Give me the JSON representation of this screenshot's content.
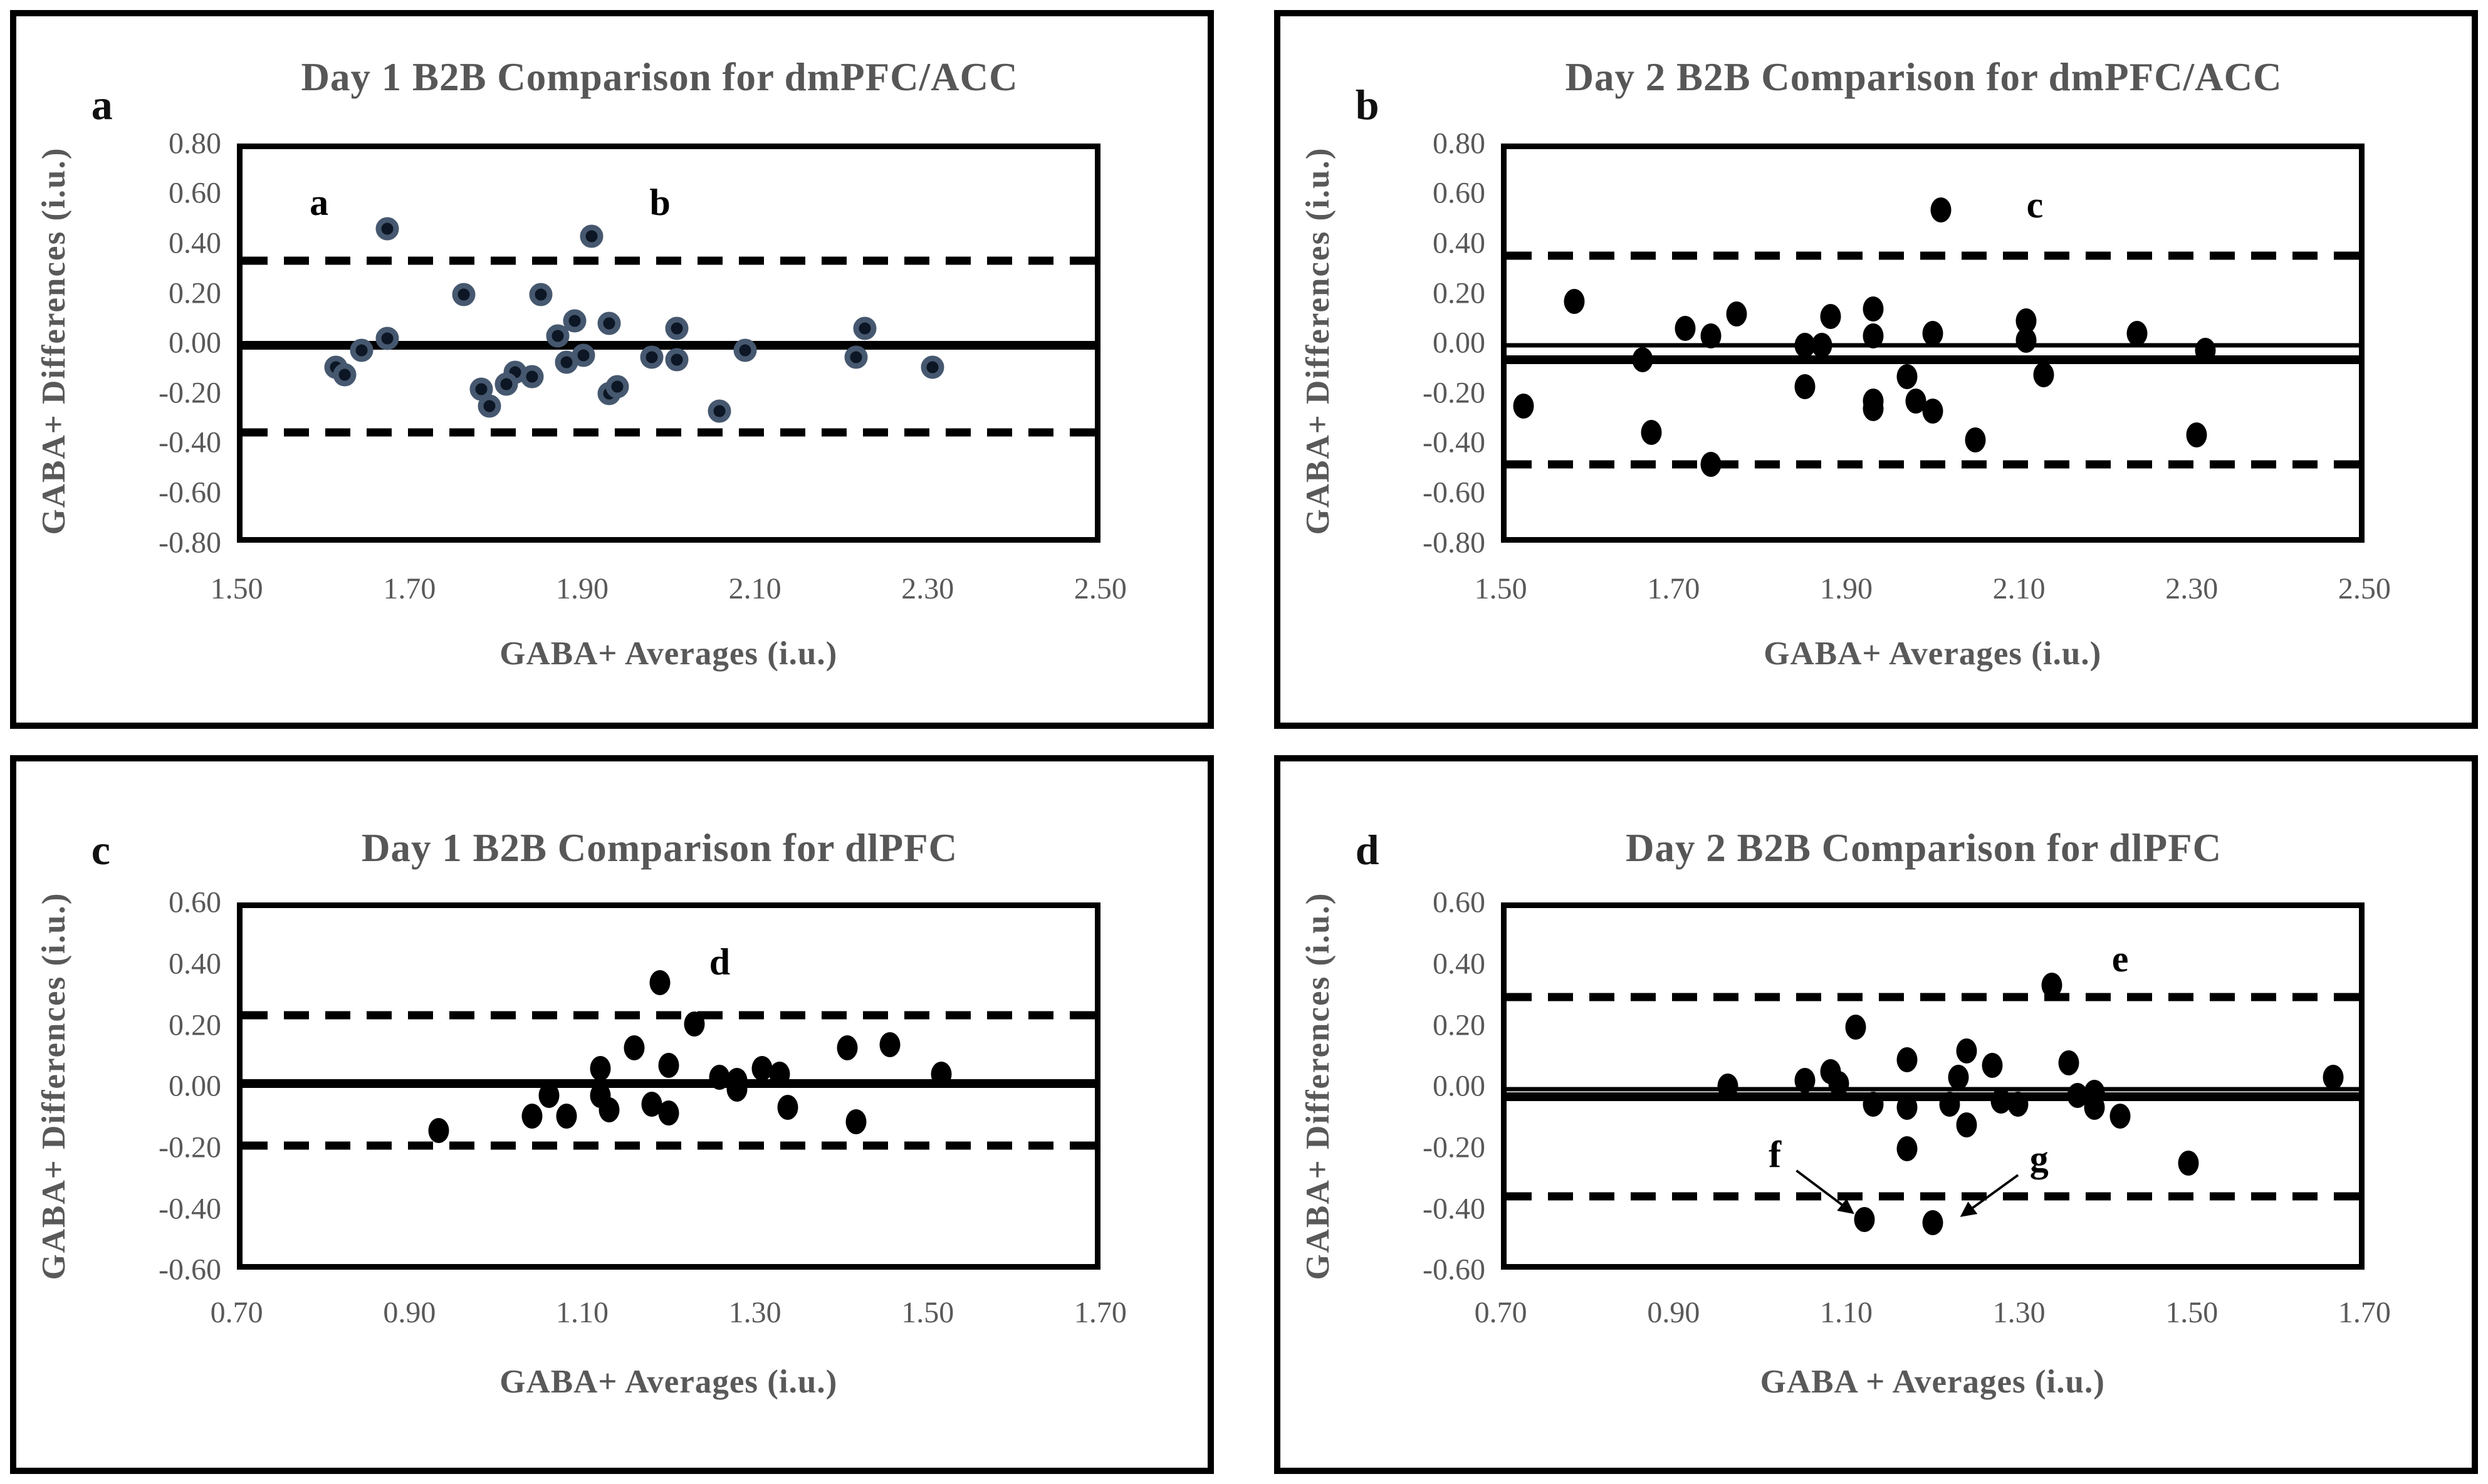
{
  "figure": {
    "background_color": "#ffffff",
    "frame_color": "#000000",
    "axis_text_color": "#595959",
    "annotation_color": "#000000",
    "day1_dmpfc_point_color": "#44546A",
    "black_point_color": "#000000"
  },
  "chart_data": [
    {
      "type": "scatter",
      "panel_letter": "a",
      "title": "Day 1 B2B Comparison for dmPFC/ACC",
      "xlabel": "GABA+ Averages (i.u.)",
      "ylabel": "GABA+ Differences (i.u.)",
      "x_range": [
        1.5,
        2.5
      ],
      "y_range": [
        -0.8,
        0.8
      ],
      "x_ticks": [
        "1.50",
        "1.70",
        "1.90",
        "2.10",
        "2.30",
        "2.50"
      ],
      "y_ticks": [
        "0.80",
        "0.60",
        "0.40",
        "0.20",
        "0.00",
        "-0.20",
        "-0.40",
        "-0.60",
        "-0.80"
      ],
      "grid": false,
      "point_style": "navy-ring",
      "lines": [
        {
          "name": "mean-line",
          "style": "mean",
          "value": -0.01
        },
        {
          "name": "upper-loa-line",
          "style": "dashed",
          "value": 0.34
        },
        {
          "name": "lower-loa-line",
          "style": "dashed",
          "value": -0.37
        }
      ],
      "annotations": [
        {
          "label": "a",
          "x": 1.59,
          "y": 0.58
        },
        {
          "label": "b",
          "x": 1.99,
          "y": 0.58
        }
      ],
      "arrows": [],
      "points": [
        [
          1.67,
          0.47
        ],
        [
          1.91,
          0.44
        ],
        [
          1.76,
          0.2
        ],
        [
          1.85,
          0.2
        ],
        [
          1.89,
          0.09
        ],
        [
          1.93,
          0.08
        ],
        [
          2.01,
          0.06
        ],
        [
          2.23,
          0.06
        ],
        [
          1.87,
          0.03
        ],
        [
          1.67,
          0.02
        ],
        [
          1.64,
          -0.03
        ],
        [
          2.09,
          -0.03
        ],
        [
          1.9,
          -0.05
        ],
        [
          1.88,
          -0.08
        ],
        [
          1.98,
          -0.06
        ],
        [
          2.01,
          -0.07
        ],
        [
          2.22,
          -0.06
        ],
        [
          1.61,
          -0.1
        ],
        [
          2.31,
          -0.1
        ],
        [
          1.62,
          -0.13
        ],
        [
          1.82,
          -0.12
        ],
        [
          1.84,
          -0.14
        ],
        [
          1.81,
          -0.17
        ],
        [
          1.78,
          -0.19
        ],
        [
          1.93,
          -0.21
        ],
        [
          1.94,
          -0.18
        ],
        [
          1.79,
          -0.26
        ],
        [
          2.06,
          -0.28
        ]
      ]
    },
    {
      "type": "scatter",
      "panel_letter": "b",
      "title": "Day 2 B2B Comparison for dmPFC/ACC",
      "xlabel": "GABA+ Averages (i.u.)",
      "ylabel": "GABA+ Differences (i.u.)",
      "x_range": [
        1.5,
        2.5
      ],
      "y_range": [
        -0.8,
        0.8
      ],
      "x_ticks": [
        "1.50",
        "1.70",
        "1.90",
        "2.10",
        "2.30",
        "2.50"
      ],
      "y_ticks": [
        "0.80",
        "0.60",
        "0.40",
        "0.20",
        "0.00",
        "-0.20",
        "-0.40",
        "-0.60",
        "-0.80"
      ],
      "grid": false,
      "point_style": "solid-black",
      "lines": [
        {
          "name": "zero-line",
          "style": "thin",
          "value": -0.01
        },
        {
          "name": "mean-line",
          "style": "mean",
          "value": -0.07
        },
        {
          "name": "upper-loa-line",
          "style": "dashed",
          "value": 0.36
        },
        {
          "name": "lower-loa-line",
          "style": "dashed",
          "value": -0.5
        }
      ],
      "annotations": [
        {
          "label": "c",
          "x": 2.12,
          "y": 0.57
        }
      ],
      "arrows": [],
      "points": [
        [
          2.01,
          0.55
        ],
        [
          1.58,
          0.17
        ],
        [
          1.93,
          0.14
        ],
        [
          1.77,
          0.12
        ],
        [
          1.88,
          0.11
        ],
        [
          2.11,
          0.09
        ],
        [
          1.71,
          0.06
        ],
        [
          2.0,
          0.04
        ],
        [
          2.24,
          0.04
        ],
        [
          1.93,
          0.03
        ],
        [
          1.74,
          0.03
        ],
        [
          2.11,
          0.01
        ],
        [
          1.85,
          -0.01
        ],
        [
          1.87,
          -0.01
        ],
        [
          2.32,
          -0.03
        ],
        [
          1.66,
          -0.07
        ],
        [
          1.97,
          -0.14
        ],
        [
          2.13,
          -0.13
        ],
        [
          1.85,
          -0.18
        ],
        [
          1.98,
          -0.24
        ],
        [
          1.93,
          -0.24
        ],
        [
          1.93,
          -0.27
        ],
        [
          2.0,
          -0.28
        ],
        [
          1.52,
          -0.26
        ],
        [
          1.67,
          -0.37
        ],
        [
          2.05,
          -0.4
        ],
        [
          2.31,
          -0.38
        ],
        [
          1.74,
          -0.5
        ]
      ]
    },
    {
      "type": "scatter",
      "panel_letter": "c",
      "title": "Day 1 B2B Comparison for dlPFC",
      "xlabel": "GABA+ Averages (i.u.)",
      "ylabel": "GABA+ Differences (i.u.)",
      "x_range": [
        0.7,
        1.7
      ],
      "y_range": [
        -0.6,
        0.6
      ],
      "x_ticks": [
        "0.70",
        "0.90",
        "1.10",
        "1.30",
        "1.50",
        "1.70"
      ],
      "y_ticks": [
        "0.60",
        "0.40",
        "0.20",
        "0.00",
        "-0.20",
        "-0.40",
        "-0.60"
      ],
      "grid": false,
      "point_style": "solid-black",
      "lines": [
        {
          "name": "mean-line",
          "style": "mean",
          "value": 0.01
        },
        {
          "name": "upper-loa-line",
          "style": "dashed",
          "value": 0.24
        },
        {
          "name": "lower-loa-line",
          "style": "dashed",
          "value": -0.2
        }
      ],
      "annotations": [
        {
          "label": "d",
          "x": 1.26,
          "y": 0.42
        }
      ],
      "arrows": [],
      "points": [
        [
          1.19,
          0.35
        ],
        [
          1.23,
          0.21
        ],
        [
          1.16,
          0.13
        ],
        [
          1.41,
          0.13
        ],
        [
          1.46,
          0.14
        ],
        [
          1.2,
          0.07
        ],
        [
          1.12,
          0.06
        ],
        [
          1.31,
          0.06
        ],
        [
          1.33,
          0.04
        ],
        [
          1.26,
          0.03
        ],
        [
          1.28,
          0.02
        ],
        [
          1.52,
          0.04
        ],
        [
          1.28,
          -0.01
        ],
        [
          1.06,
          -0.03
        ],
        [
          1.12,
          -0.03
        ],
        [
          1.18,
          -0.06
        ],
        [
          1.34,
          -0.07
        ],
        [
          1.13,
          -0.08
        ],
        [
          1.2,
          -0.09
        ],
        [
          1.04,
          -0.1
        ],
        [
          1.08,
          -0.1
        ],
        [
          1.42,
          -0.12
        ],
        [
          0.93,
          -0.15
        ]
      ]
    },
    {
      "type": "scatter",
      "panel_letter": "d",
      "title": "Day 2 B2B Comparison for dlPFC",
      "xlabel": "GABA + Averages (i.u.)",
      "ylabel": "GABA+ Differences (i.u.)",
      "x_range": [
        0.7,
        1.7
      ],
      "y_range": [
        -0.6,
        0.6
      ],
      "x_ticks": [
        "0.70",
        "0.90",
        "1.10",
        "1.30",
        "1.50",
        "1.70"
      ],
      "y_ticks": [
        "0.60",
        "0.40",
        "0.20",
        "0.00",
        "-0.20",
        "-0.40",
        "-0.60"
      ],
      "grid": false,
      "point_style": "solid-black",
      "lines": [
        {
          "name": "zero-line",
          "style": "thin",
          "value": -0.01
        },
        {
          "name": "mean-line",
          "style": "mean",
          "value": -0.035
        },
        {
          "name": "upper-loa-line",
          "style": "dashed",
          "value": 0.3
        },
        {
          "name": "lower-loa-line",
          "style": "dashed",
          "value": -0.37
        }
      ],
      "annotations": [
        {
          "label": "e",
          "x": 1.42,
          "y": 0.43
        },
        {
          "label": "f",
          "x": 1.015,
          "y": -0.23
        },
        {
          "label": "g",
          "x": 1.325,
          "y": -0.245
        }
      ],
      "arrows": [
        {
          "x1": 1.04,
          "y1": -0.285,
          "x2": 1.105,
          "y2": -0.425
        },
        {
          "x1": 1.3,
          "y1": -0.3,
          "x2": 1.235,
          "y2": -0.435
        }
      ],
      "points": [
        [
          1.34,
          0.34
        ],
        [
          1.11,
          0.2
        ],
        [
          1.24,
          0.12
        ],
        [
          1.17,
          0.09
        ],
        [
          1.27,
          0.07
        ],
        [
          1.36,
          0.08
        ],
        [
          1.08,
          0.05
        ],
        [
          1.23,
          0.03
        ],
        [
          1.05,
          0.02
        ],
        [
          0.96,
          0.0
        ],
        [
          1.09,
          0.01
        ],
        [
          1.67,
          0.03
        ],
        [
          1.39,
          -0.02
        ],
        [
          1.37,
          -0.03
        ],
        [
          1.13,
          -0.06
        ],
        [
          1.17,
          -0.07
        ],
        [
          1.22,
          -0.06
        ],
        [
          1.28,
          -0.05
        ],
        [
          1.3,
          -0.06
        ],
        [
          1.39,
          -0.07
        ],
        [
          1.42,
          -0.1
        ],
        [
          1.24,
          -0.13
        ],
        [
          1.17,
          -0.21
        ],
        [
          1.5,
          -0.26
        ],
        [
          1.12,
          -0.45
        ],
        [
          1.2,
          -0.46
        ]
      ]
    }
  ]
}
